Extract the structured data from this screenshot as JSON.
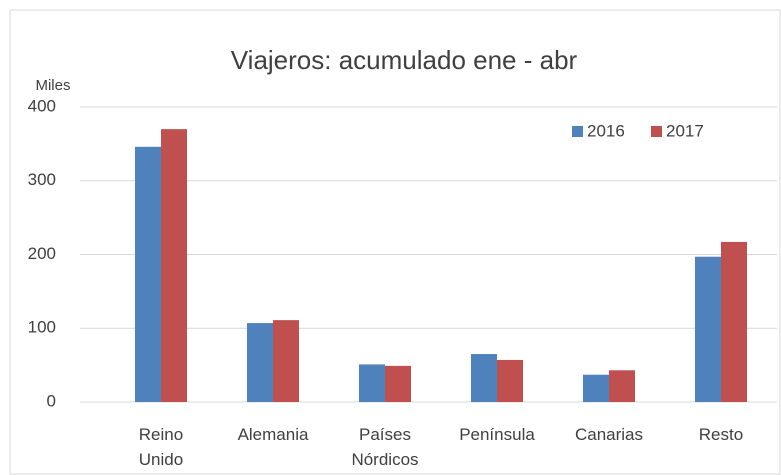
{
  "chart_data": {
    "type": "bar",
    "title": "Viajeros: acumulado ene - abr",
    "y_unit": "Miles",
    "categories": [
      "Reino Unido",
      "Alemania",
      "Países Nórdicos",
      "Península",
      "Canarias",
      "Resto"
    ],
    "series": [
      {
        "name": "2016",
        "color": "#4f81bd",
        "values": [
          346,
          107,
          51,
          65,
          37,
          197
        ]
      },
      {
        "name": "2017",
        "color": "#c0504d",
        "values": [
          370,
          111,
          49,
          57,
          43,
          217
        ]
      }
    ],
    "ylim": [
      0,
      400
    ],
    "yticks": [
      0,
      100,
      200,
      300,
      400
    ],
    "grid": true,
    "legend": "top-right"
  }
}
